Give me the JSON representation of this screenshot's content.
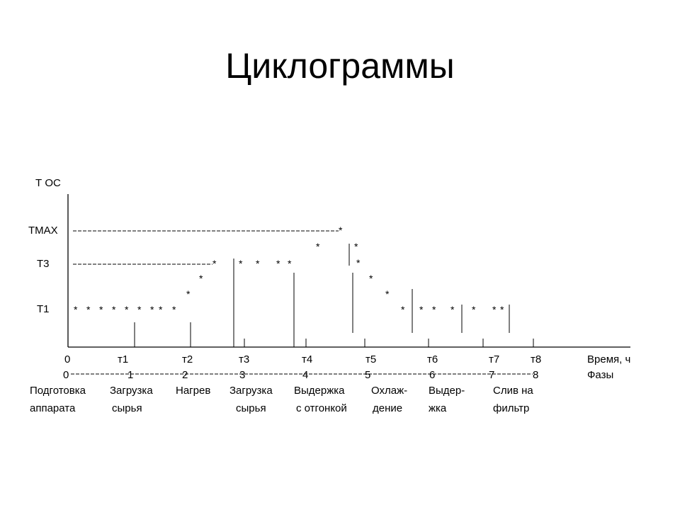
{
  "title": "Циклограммы",
  "axis": {
    "y_title": "Т ОС",
    "levels": [
      "ТМАХ",
      "Т3",
      "Т1"
    ],
    "x_ticks": [
      "0",
      "т1",
      "т2",
      "т3",
      "т4",
      "т5",
      "т6",
      "т7",
      "т8"
    ],
    "x_title": "Время, ч",
    "phase_ticks": [
      "0",
      "1",
      "2",
      "3",
      "4",
      "5",
      "6",
      "7",
      "8"
    ],
    "phase_title": "Фазы"
  },
  "phases": [
    {
      "line1": "Подготовка",
      "line2": "аппарата"
    },
    {
      "line1": "Загрузка",
      "line2": "сырья"
    },
    {
      "line1": "Нагрев",
      "line2": ""
    },
    {
      "line1": "Загрузка",
      "line2": "сырья"
    },
    {
      "line1": "Выдержка",
      "line2": "с отгонкой"
    },
    {
      "line1": "Охлаж-",
      "line2": "дение"
    },
    {
      "line1": "Выдер-",
      "line2": "жка"
    },
    {
      "line1": "Слив на",
      "line2": "фильтр"
    }
  ],
  "marker_glyph": "*"
}
